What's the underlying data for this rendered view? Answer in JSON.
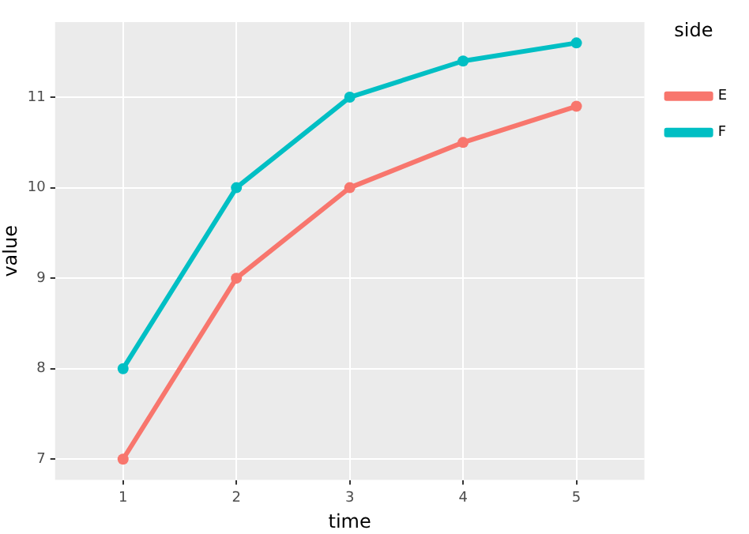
{
  "chart_data": {
    "type": "line",
    "xlabel": "time",
    "ylabel": "value",
    "legend_title": "side",
    "x": [
      1,
      2,
      3,
      4,
      5
    ],
    "series": [
      {
        "name": "E",
        "color": "#f8766d",
        "values": [
          7,
          9,
          10,
          10.5,
          10.9
        ]
      },
      {
        "name": "F",
        "color": "#00bfc4",
        "values": [
          8,
          10,
          11,
          11.4,
          11.6
        ]
      }
    ],
    "xlim": [
      0.4,
      5.6
    ],
    "xticks": [
      1,
      2,
      3,
      4,
      5
    ],
    "ylim": [
      6.77,
      11.83
    ],
    "yticks": [
      7,
      8,
      9,
      10,
      11
    ],
    "grid": true,
    "legend": "right",
    "marker": "circle",
    "line_style": "solid"
  }
}
